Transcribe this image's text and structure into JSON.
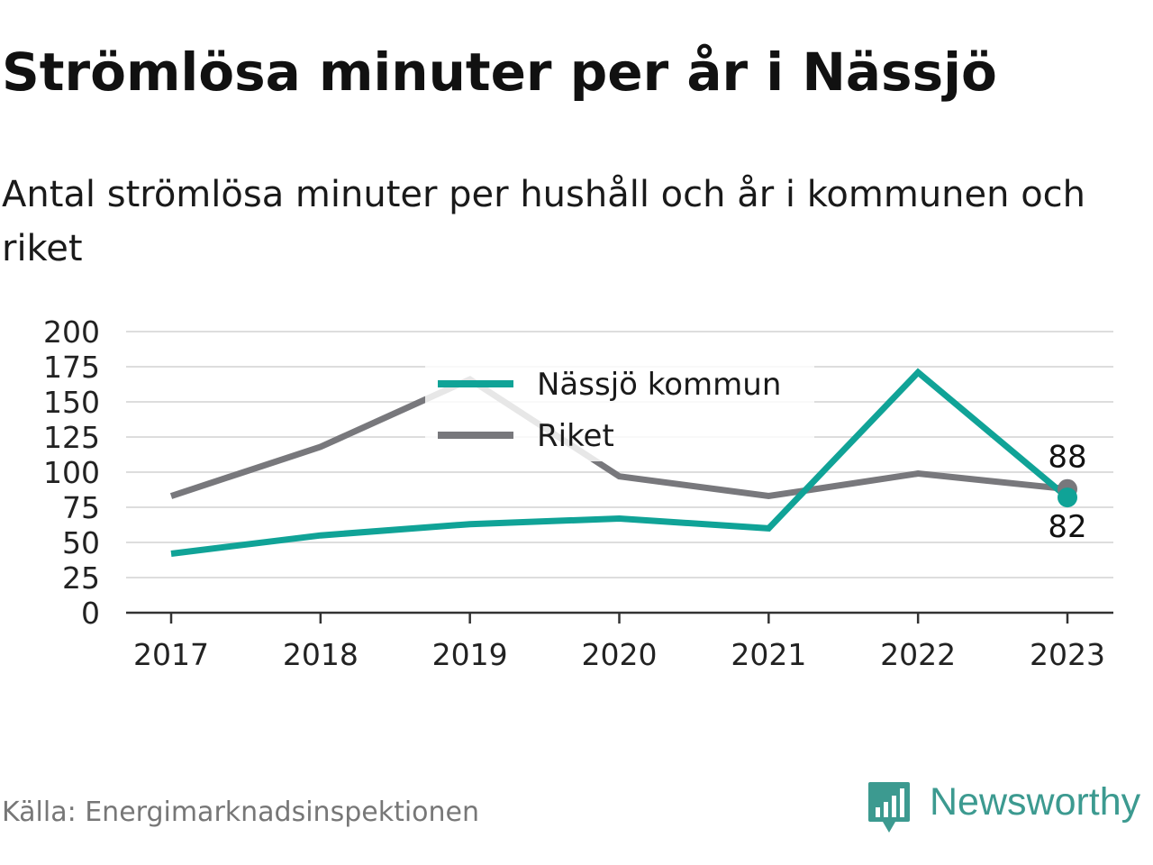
{
  "header": {
    "title": "Strömlösa minuter per år i Nässjö",
    "subtitle": "Antal strömlösa minuter per hushåll och år i kommunen och riket"
  },
  "footer": {
    "source": "Källa: Energimarknadsinspektionen",
    "brand": "Newsworthy",
    "brand_icon": "bar-chart-speech-bubble-icon"
  },
  "colors": {
    "nassjo": "#10a397",
    "riket": "#78787c",
    "grid": "#dddddd",
    "axis": "#333333",
    "brand": "#3c9a90"
  },
  "chart_data": {
    "type": "line",
    "title": "Strömlösa minuter per år i Nässjö",
    "xlabel": "",
    "ylabel": "",
    "x": [
      "2017",
      "2018",
      "2019",
      "2020",
      "2021",
      "2022",
      "2023"
    ],
    "ylim": [
      0,
      200
    ],
    "yticks": [
      "0",
      "25",
      "50",
      "75",
      "100",
      "125",
      "150",
      "175",
      "200"
    ],
    "grid": true,
    "legend_position": "top-center",
    "series": [
      {
        "name": "Nässjö kommun",
        "values": [
          42,
          55,
          63,
          67,
          60,
          171,
          82
        ],
        "end_label": "82"
      },
      {
        "name": "Riket",
        "values": [
          83,
          118,
          166,
          97,
          83,
          99,
          88
        ],
        "end_label": "88"
      }
    ]
  }
}
